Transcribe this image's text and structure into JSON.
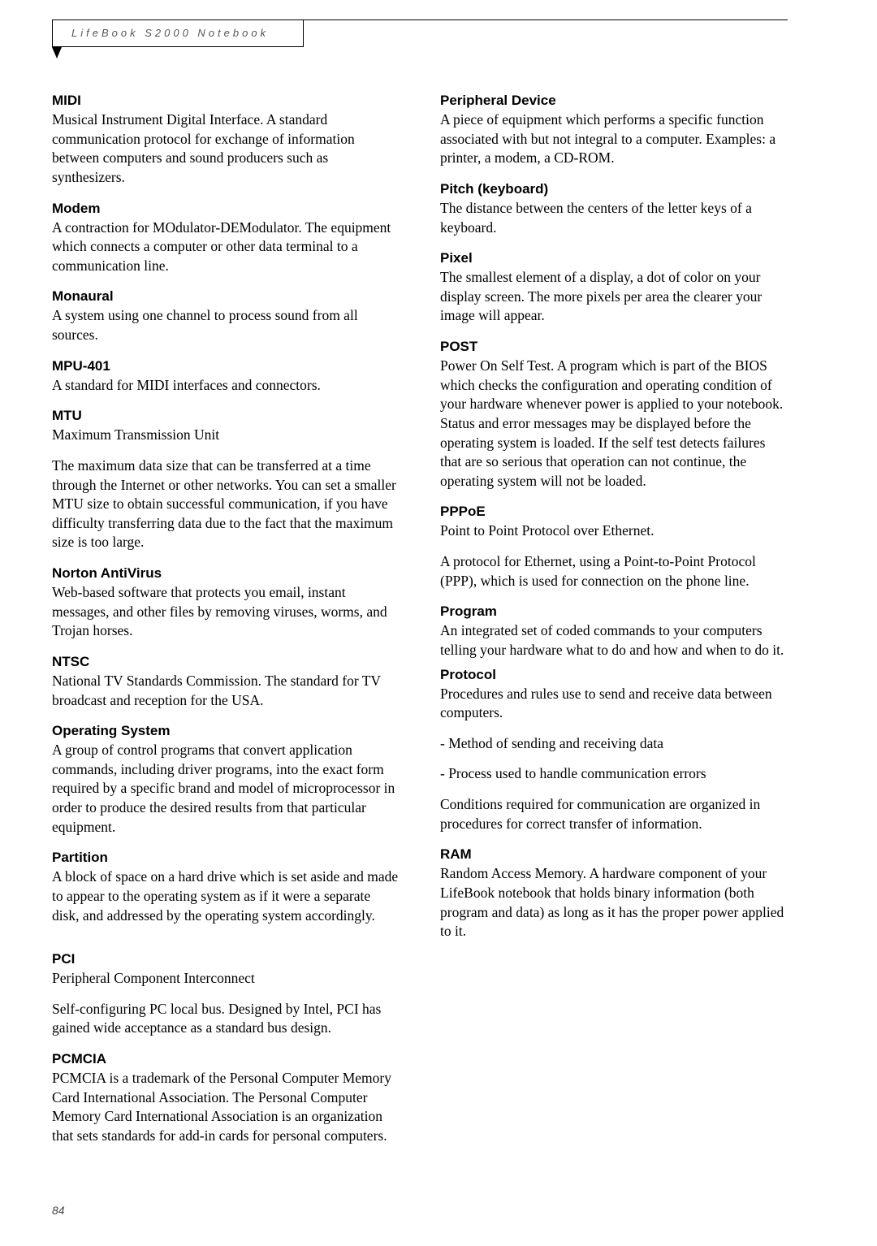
{
  "header": "LifeBook S2000 Notebook",
  "page_number": "84",
  "entries": [
    {
      "term": "MIDI",
      "paragraphs": [
        "Musical Instrument Digital Interface. A standard communication protocol for exchange of information between computers and sound producers such as synthesizers."
      ]
    },
    {
      "term": "Modem",
      "paragraphs": [
        "A contraction for MOdulator-DEModulator. The equipment which connects a computer or other data terminal to a communication line."
      ]
    },
    {
      "term": "Monaural",
      "paragraphs": [
        "A system using one channel to process sound from all sources."
      ]
    },
    {
      "term": "MPU-401",
      "paragraphs": [
        "A standard for MIDI interfaces and connectors."
      ]
    },
    {
      "term": "MTU",
      "paragraphs": [
        "Maximum Transmission Unit",
        "The maximum data size that can be transferred at a time through the Internet or other networks. You can set a smaller MTU size to obtain successful communication, if you have difficulty transferring data due to the fact that the maximum size is too large."
      ]
    },
    {
      "term": "Norton AntiVirus",
      "paragraphs": [
        "Web-based software that protects you email, instant messages, and other files by removing viruses, worms, and Trojan horses."
      ]
    },
    {
      "term": "NTSC",
      "paragraphs": [
        "National TV Standards Commission. The standard for TV broadcast and reception for the USA."
      ]
    },
    {
      "term": "Operating System",
      "paragraphs": [
        "A group of control programs that convert application commands, including driver programs, into the exact form required by a specific brand and model of microprocessor in order to produce the desired results from that particular equipment."
      ]
    },
    {
      "term": "Partition",
      "paragraphs": [
        "A block of space on a hard drive which is set aside and made to appear to the operating system as if it were a separate disk, and addressed by the operating system accordingly."
      ],
      "extra_gap": true
    },
    {
      "term": "PCI",
      "paragraphs": [
        "Peripheral Component Interconnect",
        "Self-configuring PC local bus. Designed by Intel, PCI has gained wide acceptance as a standard bus design."
      ]
    },
    {
      "term": "PCMCIA",
      "paragraphs": [
        "PCMCIA is a trademark of the Personal Computer Memory Card International Association. The Personal Computer Memory Card International Association is an organization that sets standards for add-in cards for personal computers."
      ]
    },
    {
      "term": "Peripheral Device",
      "paragraphs": [
        "A piece of equipment which performs a specific function associated with but not integral to a computer. Examples: a printer, a modem, a CD-ROM."
      ]
    },
    {
      "term": "Pitch (keyboard)",
      "paragraphs": [
        "The distance between the centers of the letter keys of a keyboard."
      ]
    },
    {
      "term": "Pixel",
      "paragraphs": [
        "The smallest element of a display, a dot of color on your display screen. The more pixels per area the clearer your image will appear."
      ]
    },
    {
      "term": "POST",
      "paragraphs": [
        "Power On Self Test. A program which is part of the BIOS which checks the configuration and operating condition of your hardware whenever power is applied to your notebook. Status and error messages may be displayed before the operating system is loaded. If the self test detects failures that are so serious that operation can not continue, the operating system will not be loaded."
      ]
    },
    {
      "term": "PPPoE",
      "paragraphs": [
        "Point to Point Protocol over Ethernet.",
        "A protocol for Ethernet, using a Point-to-Point Protocol (PPP), which is used for connection on the phone line."
      ]
    },
    {
      "term": "Program",
      "paragraphs": [
        "An integrated set of coded commands to your computers telling your hardware what to do and how and when to do it."
      ],
      "tight": true
    },
    {
      "term": "Protocol",
      "paragraphs": [
        "Procedures and rules use to send and receive data between computers.",
        "- Method of sending and receiving data",
        "- Process used to handle communication errors",
        "Conditions required for communication are organized in procedures for correct transfer of information."
      ]
    },
    {
      "term": "RAM",
      "paragraphs": [
        "Random Access Memory. A hardware component of your LifeBook notebook that holds binary information (both program and data) as long as it has the proper power applied to it."
      ]
    }
  ]
}
